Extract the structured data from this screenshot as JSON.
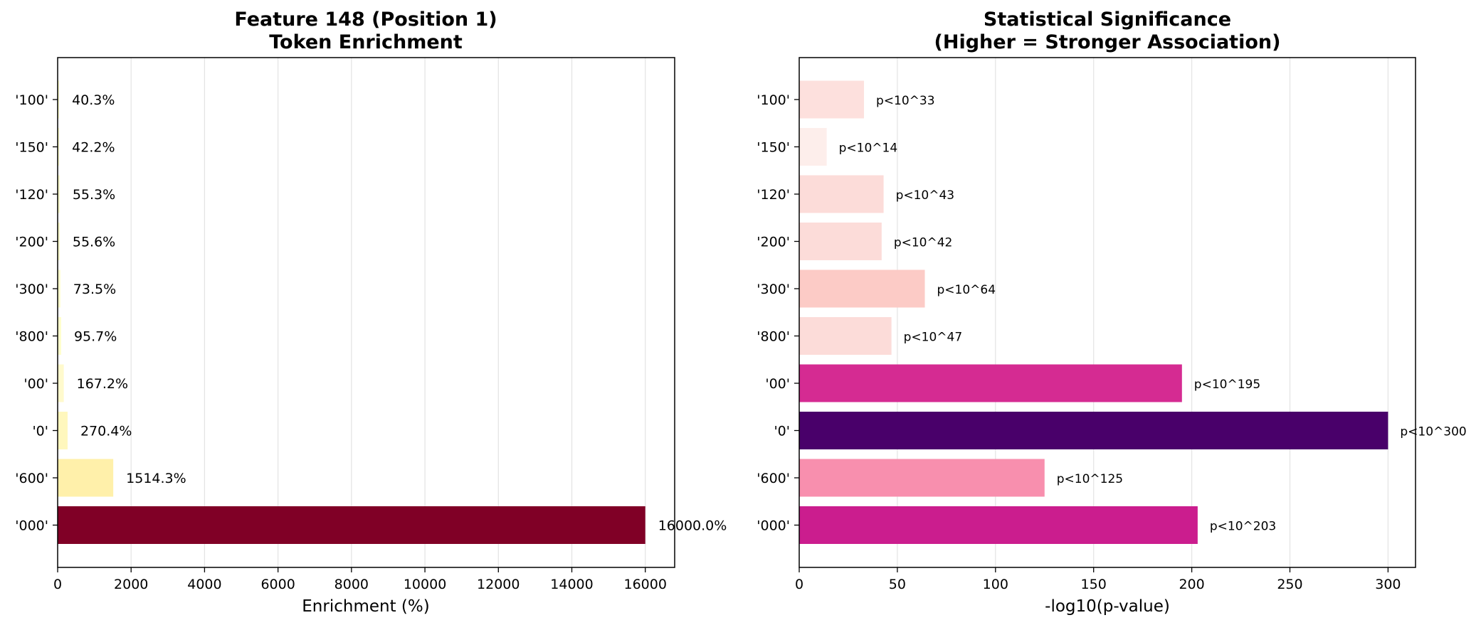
{
  "chart_data": [
    {
      "type": "bar",
      "orientation": "horizontal",
      "title": [
        "Feature 148 (Position 1)",
        "Token Enrichment"
      ],
      "xlabel": "Enrichment (%)",
      "ylabel": "",
      "categories": [
        "'100'",
        "'150'",
        "'120'",
        "'200'",
        "'300'",
        "'800'",
        "'00'",
        "'0'",
        "'600'",
        "'000'"
      ],
      "values": [
        40.3,
        42.2,
        55.3,
        55.6,
        73.5,
        95.7,
        167.2,
        270.4,
        1514.3,
        16000.0
      ],
      "data_labels": [
        "40.3%",
        "42.2%",
        "55.3%",
        "55.6%",
        "73.5%",
        "95.7%",
        "167.2%",
        "270.4%",
        "1514.3%",
        "16000.0%"
      ],
      "colors": [
        "#ffffcc",
        "#ffffcc",
        "#ffffcc",
        "#ffffcc",
        "#ffffcc",
        "#ffffcc",
        "#fffacd",
        "#fff7bd",
        "#fff0aa",
        "#800026"
      ],
      "xlim": [
        0,
        16800
      ],
      "xticks": [
        0,
        2000,
        4000,
        6000,
        8000,
        10000,
        12000,
        14000,
        16000
      ],
      "grid": "x"
    },
    {
      "type": "bar",
      "orientation": "horizontal",
      "title": [
        "Statistical Significance",
        "(Higher = Stronger Association)"
      ],
      "xlabel": "-log10(p-value)",
      "ylabel": "",
      "categories": [
        "'100'",
        "'150'",
        "'120'",
        "'200'",
        "'300'",
        "'800'",
        "'00'",
        "'0'",
        "'600'",
        "'000'"
      ],
      "values": [
        33,
        14,
        43,
        42,
        64,
        47,
        195,
        300,
        125,
        203
      ],
      "data_labels": [
        "p<10^33",
        "p<10^14",
        "p<10^43",
        "p<10^42",
        "p<10^64",
        "p<10^47",
        "p<10^195",
        "p<10^300",
        "p<10^125",
        "p<10^203"
      ],
      "colors": [
        "#fde0dd",
        "#fdeeeb",
        "#fcdcd9",
        "#fcdcd9",
        "#fccbc6",
        "#fcdcd9",
        "#d52b92",
        "#49006a",
        "#f88fae",
        "#cb1d8e"
      ],
      "xlim": [
        0,
        314
      ],
      "xticks": [
        0,
        50,
        100,
        150,
        200,
        250,
        300
      ],
      "grid": "x"
    }
  ]
}
